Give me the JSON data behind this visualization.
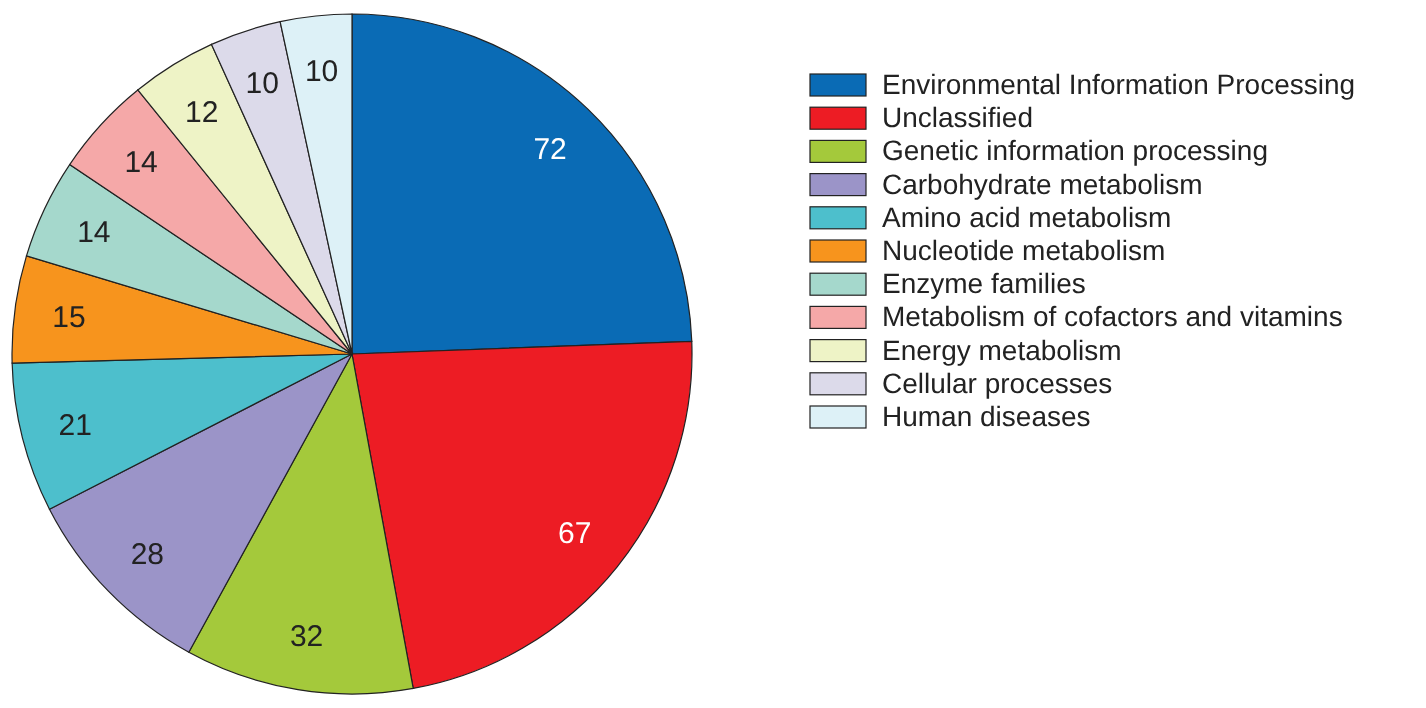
{
  "chart_data": {
    "type": "pie",
    "categories": [
      "Environmental Information Processing",
      "Unclassified",
      "Genetic information processing",
      "Carbohydrate metabolism",
      "Amino acid metabolism",
      "Nucleotide metabolism",
      "Enzyme families",
      "Metabolism of cofactors and vitamins",
      "Energy metabolism",
      "Cellular processes",
      "Human diseases"
    ],
    "values": [
      72,
      67,
      32,
      28,
      21,
      15,
      14,
      14,
      12,
      10,
      10
    ],
    "colors": [
      "#0a6bb5",
      "#ed1c24",
      "#a4c93b",
      "#9b94c8",
      "#4dbfcc",
      "#f7941d",
      "#a5d8cc",
      "#f5a8a8",
      "#eef3c6",
      "#dcdaea",
      "#ddf1f7"
    ],
    "data_labels": true,
    "legend": "right"
  }
}
